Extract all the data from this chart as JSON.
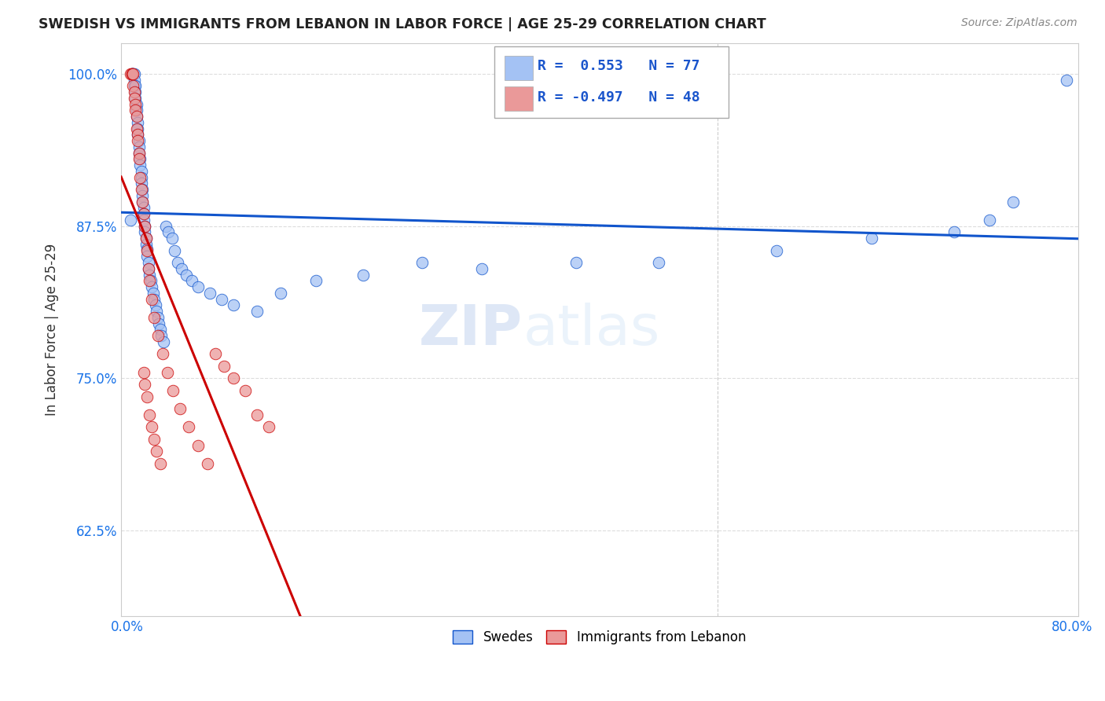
{
  "title": "SWEDISH VS IMMIGRANTS FROM LEBANON IN LABOR FORCE | AGE 25-29 CORRELATION CHART",
  "source": "Source: ZipAtlas.com",
  "ylabel": "In Labor Force | Age 25-29",
  "xlim": [
    -0.005,
    0.805
  ],
  "ylim": [
    0.555,
    1.025
  ],
  "yticks": [
    0.625,
    0.75,
    0.875,
    1.0
  ],
  "ytick_labels": [
    "62.5%",
    "75.0%",
    "87.5%",
    "100.0%"
  ],
  "xticks": [
    0.0,
    0.1,
    0.2,
    0.3,
    0.4,
    0.5,
    0.6,
    0.7,
    0.8
  ],
  "xtick_labels": [
    "0.0%",
    "",
    "",
    "",
    "",
    "",
    "",
    "",
    "80.0%"
  ],
  "blue_R": 0.553,
  "blue_N": 77,
  "pink_R": -0.497,
  "pink_N": 48,
  "blue_color": "#a4c2f4",
  "pink_color": "#ea9999",
  "blue_line_color": "#1155cc",
  "pink_line_color": "#cc0000",
  "watermark_zip": "ZIP",
  "watermark_atlas": "atlas",
  "legend_swedes": "Swedes",
  "legend_immigrants": "Immigrants from Lebanon",
  "blue_scatter_x": [
    0.003,
    0.004,
    0.004,
    0.005,
    0.005,
    0.006,
    0.006,
    0.006,
    0.007,
    0.007,
    0.007,
    0.008,
    0.008,
    0.008,
    0.009,
    0.009,
    0.009,
    0.01,
    0.01,
    0.01,
    0.011,
    0.011,
    0.012,
    0.012,
    0.012,
    0.013,
    0.013,
    0.013,
    0.014,
    0.014,
    0.014,
    0.015,
    0.015,
    0.016,
    0.016,
    0.017,
    0.017,
    0.018,
    0.018,
    0.019,
    0.02,
    0.021,
    0.022,
    0.023,
    0.024,
    0.025,
    0.026,
    0.027,
    0.028,
    0.029,
    0.031,
    0.033,
    0.035,
    0.038,
    0.04,
    0.043,
    0.046,
    0.05,
    0.055,
    0.06,
    0.07,
    0.08,
    0.09,
    0.11,
    0.13,
    0.16,
    0.2,
    0.25,
    0.3,
    0.38,
    0.45,
    0.55,
    0.63,
    0.7,
    0.73,
    0.75,
    0.795
  ],
  "blue_scatter_y": [
    0.88,
    1.0,
    1.0,
    1.0,
    1.0,
    1.0,
    0.995,
    0.99,
    0.99,
    0.985,
    0.98,
    0.975,
    0.97,
    0.965,
    0.96,
    0.955,
    0.95,
    0.945,
    0.94,
    0.935,
    0.93,
    0.925,
    0.92,
    0.915,
    0.91,
    0.905,
    0.9,
    0.895,
    0.89,
    0.885,
    0.88,
    0.875,
    0.87,
    0.865,
    0.86,
    0.856,
    0.85,
    0.845,
    0.84,
    0.835,
    0.83,
    0.825,
    0.82,
    0.815,
    0.81,
    0.805,
    0.8,
    0.795,
    0.79,
    0.785,
    0.78,
    0.875,
    0.87,
    0.865,
    0.855,
    0.845,
    0.84,
    0.835,
    0.83,
    0.825,
    0.82,
    0.815,
    0.81,
    0.805,
    0.82,
    0.83,
    0.835,
    0.845,
    0.84,
    0.845,
    0.845,
    0.855,
    0.865,
    0.87,
    0.88,
    0.895,
    0.995
  ],
  "pink_scatter_x": [
    0.003,
    0.004,
    0.004,
    0.005,
    0.005,
    0.006,
    0.006,
    0.007,
    0.007,
    0.008,
    0.008,
    0.009,
    0.009,
    0.01,
    0.01,
    0.011,
    0.012,
    0.013,
    0.014,
    0.015,
    0.016,
    0.017,
    0.018,
    0.019,
    0.021,
    0.023,
    0.026,
    0.03,
    0.034,
    0.039,
    0.045,
    0.052,
    0.06,
    0.068,
    0.075,
    0.082,
    0.09,
    0.1,
    0.11,
    0.12,
    0.014,
    0.015,
    0.017,
    0.019,
    0.021,
    0.023,
    0.025,
    0.028
  ],
  "pink_scatter_y": [
    1.0,
    1.0,
    1.0,
    1.0,
    0.99,
    0.985,
    0.98,
    0.975,
    0.97,
    0.965,
    0.955,
    0.95,
    0.945,
    0.935,
    0.93,
    0.915,
    0.905,
    0.895,
    0.885,
    0.875,
    0.865,
    0.855,
    0.84,
    0.83,
    0.815,
    0.8,
    0.785,
    0.77,
    0.755,
    0.74,
    0.725,
    0.71,
    0.695,
    0.68,
    0.77,
    0.76,
    0.75,
    0.74,
    0.72,
    0.71,
    0.755,
    0.745,
    0.735,
    0.72,
    0.71,
    0.7,
    0.69,
    0.68
  ]
}
